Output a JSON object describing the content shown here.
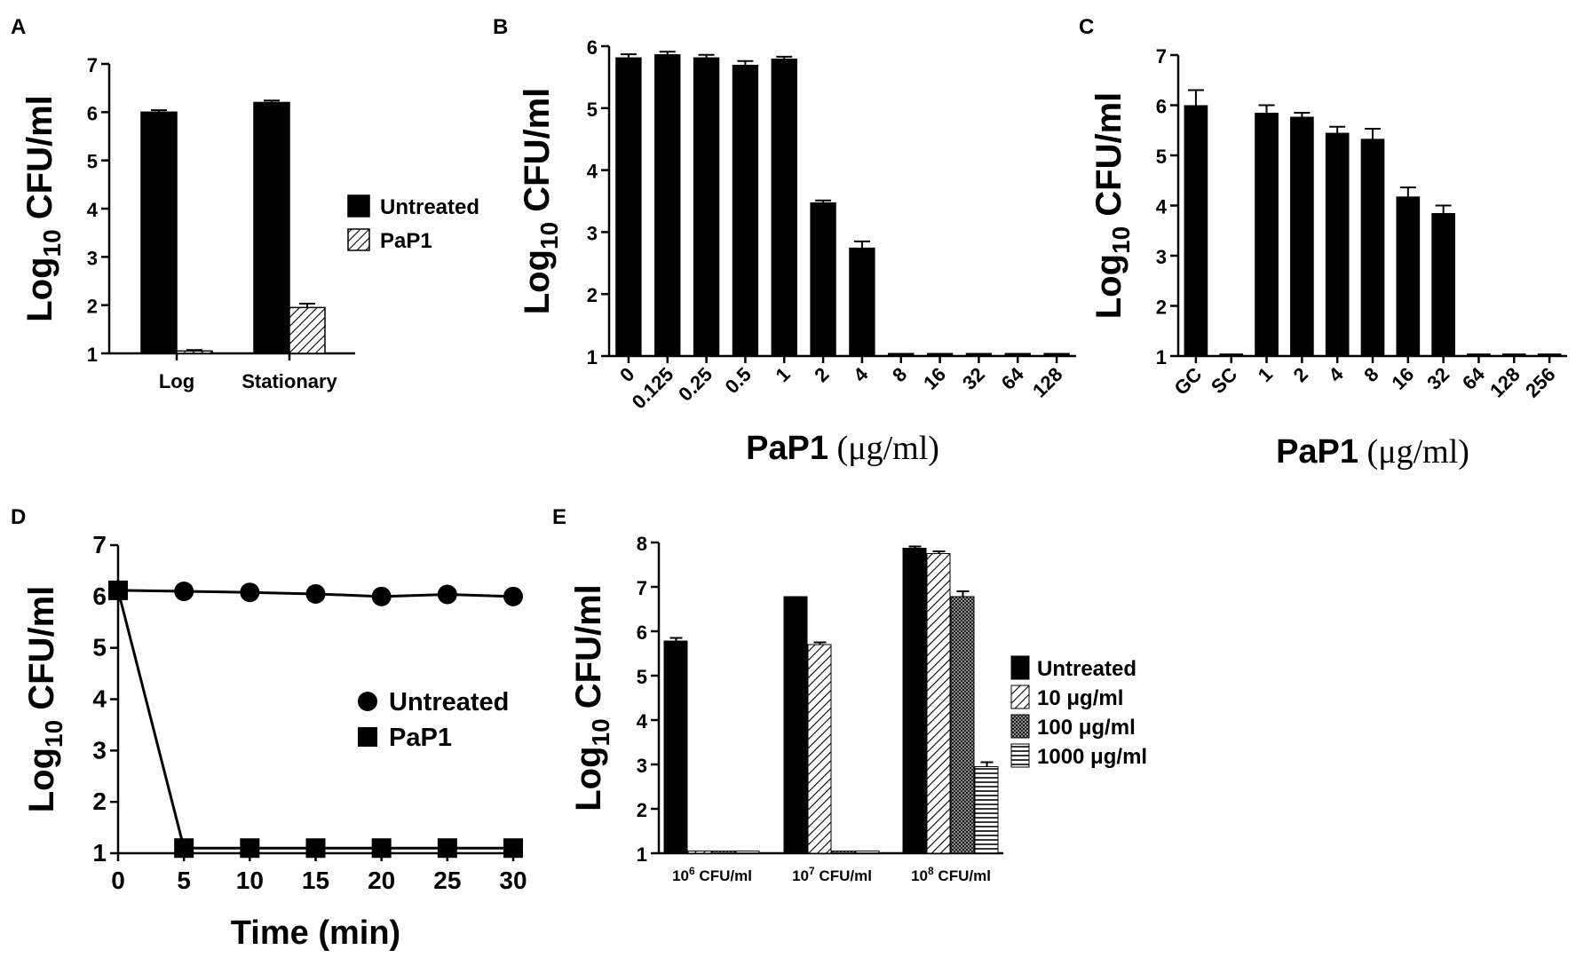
{
  "figure": {
    "panels": [
      {
        "id": "A",
        "label": "A"
      },
      {
        "id": "B",
        "label": "B"
      },
      {
        "id": "C",
        "label": "C"
      },
      {
        "id": "D",
        "label": "D"
      },
      {
        "id": "E",
        "label": "E"
      }
    ]
  },
  "chart_data": [
    {
      "panel": "A",
      "type": "bar",
      "ylabel": {
        "main": "Log",
        "sub": "10",
        "rest": " CFU/ml"
      },
      "ylim": [
        1,
        7
      ],
      "yticks": [
        1,
        2,
        3,
        4,
        5,
        6,
        7
      ],
      "categories": [
        "Log",
        "Stationary"
      ],
      "series": [
        {
          "name": "Untreated",
          "fill": "solid",
          "values": [
            6.0,
            6.2
          ],
          "errors": [
            0.04,
            0.04
          ]
        },
        {
          "name": "PaP1",
          "fill": "hatch",
          "values": [
            1.05,
            1.95
          ],
          "errors": [
            0.02,
            0.08
          ]
        }
      ],
      "legend": [
        "Untreated",
        "PaP1"
      ]
    },
    {
      "panel": "B",
      "type": "bar",
      "ylabel": {
        "main": "Log",
        "sub": "10",
        "rest": " CFU/ml"
      },
      "xlabel": {
        "main": "PaP1",
        "unit": " (μg/ml)"
      },
      "ylim": [
        1,
        6
      ],
      "yticks": [
        1,
        2,
        3,
        4,
        5,
        6
      ],
      "categories": [
        "0",
        "0.125",
        "0.25",
        "0.5",
        "1",
        "2",
        "4",
        "8",
        "16",
        "32",
        "64",
        "128"
      ],
      "values": [
        5.82,
        5.87,
        5.82,
        5.7,
        5.8,
        3.48,
        2.75,
        1.05,
        1.05,
        1.05,
        1.05,
        1.05
      ],
      "errors": [
        0.05,
        0.04,
        0.04,
        0.06,
        0.03,
        0.03,
        0.1,
        0.0,
        0.0,
        0.0,
        0.0,
        0.0
      ]
    },
    {
      "panel": "C",
      "type": "bar",
      "ylabel": {
        "main": "Log",
        "sub": "10",
        "rest": " CFU/ml"
      },
      "xlabel": {
        "main": "PaP1",
        "unit": " (μg/ml)"
      },
      "ylim": [
        1,
        7
      ],
      "yticks": [
        1,
        2,
        3,
        4,
        5,
        6,
        7
      ],
      "categories": [
        "GC",
        "SC",
        "1",
        "2",
        "4",
        "8",
        "16",
        "32",
        "64",
        "128",
        "256"
      ],
      "values": [
        6.0,
        1.05,
        5.85,
        5.77,
        5.45,
        5.33,
        4.18,
        3.85,
        1.05,
        1.05,
        1.05
      ],
      "errors": [
        0.3,
        0.0,
        0.15,
        0.08,
        0.12,
        0.2,
        0.18,
        0.15,
        0.0,
        0.0,
        0.0
      ]
    },
    {
      "panel": "D",
      "type": "line",
      "ylabel": {
        "main": "Log",
        "sub": "10",
        "rest": " CFU/ml"
      },
      "xlabel": "Time (min)",
      "ylim": [
        1,
        7
      ],
      "xlim": [
        0,
        30
      ],
      "yticks": [
        1,
        2,
        3,
        4,
        5,
        6,
        7
      ],
      "xticks": [
        0,
        5,
        10,
        15,
        20,
        25,
        30
      ],
      "series": [
        {
          "name": "Untreated",
          "marker": "circle",
          "x": [
            0,
            5,
            10,
            15,
            20,
            25,
            30
          ],
          "y": [
            6.12,
            6.1,
            6.08,
            6.05,
            6.0,
            6.04,
            6.0
          ]
        },
        {
          "name": "PaP1",
          "marker": "square",
          "x": [
            0,
            5,
            10,
            15,
            20,
            25,
            30
          ],
          "y": [
            6.12,
            1.1,
            1.1,
            1.1,
            1.1,
            1.1,
            1.1
          ]
        }
      ],
      "legend": [
        "Untreated",
        "PaP1"
      ]
    },
    {
      "panel": "E",
      "type": "bar",
      "ylabel": {
        "main": "Log",
        "sub": "10",
        "rest": " CFU/ml"
      },
      "ylim": [
        1,
        8
      ],
      "yticks": [
        1,
        2,
        3,
        4,
        5,
        6,
        7,
        8
      ],
      "categories": [
        {
          "base": "10",
          "exp": "6",
          "rest": " CFU/ml"
        },
        {
          "base": "10",
          "exp": "7",
          "rest": " CFU/ml"
        },
        {
          "base": "10",
          "exp": "8",
          "rest": " CFU/ml"
        }
      ],
      "series": [
        {
          "name": "Untreated",
          "fill": "solid",
          "values": [
            5.78,
            6.78,
            7.87
          ],
          "errors": [
            0.07,
            0.0,
            0.04
          ]
        },
        {
          "name": "10 μg/ml",
          "fill": "hatch",
          "values": [
            1.05,
            5.7,
            7.75
          ],
          "errors": [
            0.0,
            0.05,
            0.05
          ]
        },
        {
          "name": "100 μg/ml",
          "fill": "dots",
          "values": [
            1.05,
            1.05,
            6.78
          ],
          "errors": [
            0.0,
            0.0,
            0.12
          ]
        },
        {
          "name": "1000 μg/ml",
          "fill": "hlines",
          "values": [
            1.05,
            1.05,
            2.95
          ],
          "errors": [
            0.0,
            0.0,
            0.1
          ]
        }
      ],
      "legend": [
        "Untreated",
        "10 μg/ml",
        "100 μg/ml",
        "1000 μg/ml"
      ]
    }
  ]
}
